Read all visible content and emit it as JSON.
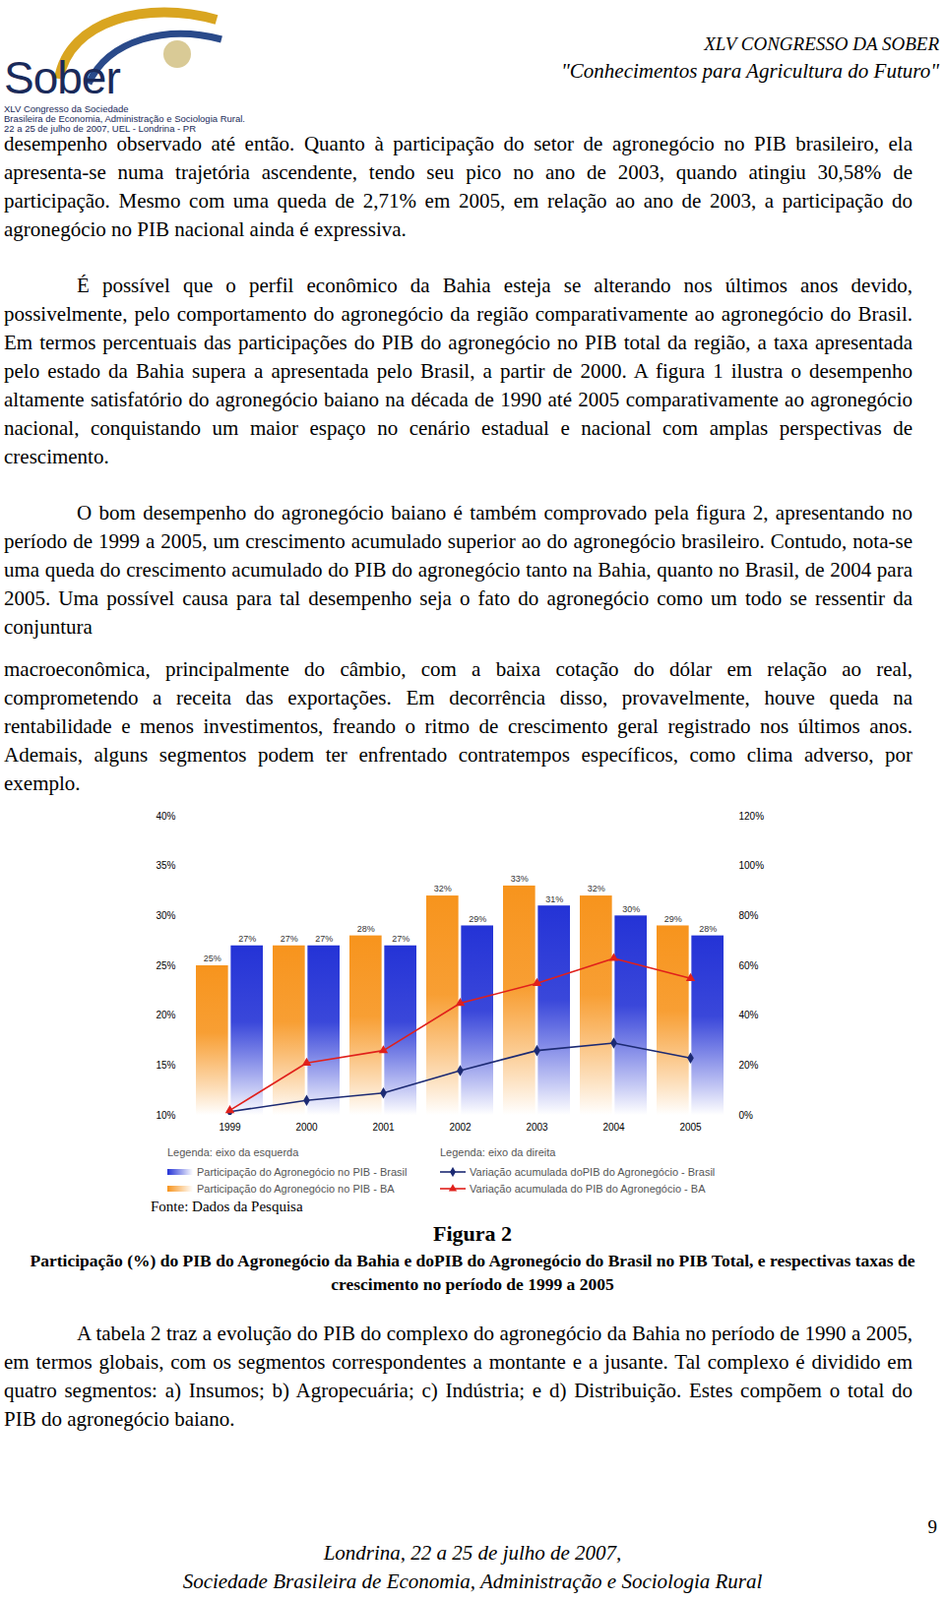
{
  "header": {
    "logo": "Sober",
    "logo_caption": [
      "XLV Congresso da Sociedade",
      "Brasileira de Economia, Administração e Sociologia Rural.",
      "22 a 25 de julho de 2007, UEL - Londrina - PR"
    ],
    "title": "XLV CONGRESSO DA SOBER",
    "subtitle": "\"Conhecimentos para Agricultura do Futuro\""
  },
  "body_before": [
    {
      "text": "desempenho observado até então. Quanto à participação do setor de agronegócio no PIB brasileiro, ela apresenta-se numa trajetória ascendente, tendo seu pico no ano de 2003, quando atingiu 30,58% de participação. Mesmo com uma queda de 2,71% em 2005, em relação ao ano de 2003, a participação do agronegócio no PIB nacional ainda é expressiva.",
      "indent": false
    },
    {
      "text": "É possível que o perfil econômico da Bahia esteja se alterando nos últimos anos devido, possivelmente, pelo comportamento do agronegócio da região comparativamente ao agronegócio do Brasil. Em termos percentuais das participações do PIB do agronegócio no PIB total da região, a taxa apresentada pelo estado da Bahia supera a apresentada pelo Brasil, a partir de 2000. A figura 1 ilustra o desempenho altamente satisfatório do agronegócio baiano na década de 1990 até 2005 comparativamente ao agronegócio nacional, conquistando um maior espaço no cenário estadual e nacional com amplas perspectivas de crescimento.",
      "indent": true
    },
    {
      "text": "O bom desempenho do agronegócio baiano é também comprovado pela figura 2, apresentando no período de 1999 a 2005, um crescimento acumulado superior ao do agronegócio brasileiro. Contudo, nota-se uma queda do crescimento acumulado do PIB do agronegócio tanto na Bahia, quanto no Brasil, de 2004 para 2005. Uma possível causa para tal desempenho seja o fato do agronegócio como um todo se ressentir da conjuntura",
      "indent": true
    },
    {
      "text": "macroeconômica, principalmente do câmbio, com a baixa cotação do dólar em relação ao real, comprometendo a receita das exportações. Em decorrência disso, provavelmente, houve queda na rentabilidade e menos investimentos, freando o ritmo de crescimento geral registrado nos últimos anos. Ademais, alguns segmentos podem ter enfrentado contratempos específicos, como clima adverso, por exemplo.",
      "indent": false
    }
  ],
  "chart_data": {
    "type": "bar",
    "categories": [
      "1999",
      "2000",
      "2001",
      "2002",
      "2003",
      "2004",
      "2005"
    ],
    "series": [
      {
        "name": "Participação do Agronegócio no PIB - Brasil",
        "type": "bar",
        "color": "#2433d6",
        "values": [
          27,
          27,
          27,
          29,
          31,
          30,
          28
        ],
        "value_labels": [
          "27%",
          "27%",
          "27%",
          "29%",
          "31%",
          "30%",
          "28%"
        ]
      },
      {
        "name": "Participação do Agronegócio no PIB - BA",
        "type": "bar",
        "color": "#f7941d",
        "values": [
          25,
          27,
          28,
          32,
          33,
          32,
          29
        ],
        "value_labels": [
          "25%",
          "27%",
          "28%",
          "32%",
          "33%",
          "32%",
          "29%"
        ]
      },
      {
        "name": "Variação acumulada doPIB do Agronegócio - Brasil",
        "type": "line",
        "axis": "y2",
        "color": "#1c2a73",
        "marker": "diamond",
        "values": [
          1.5,
          6,
          9,
          18,
          26,
          29,
          23
        ]
      },
      {
        "name": "Variação acumulada do PIB do Agronegócio - BA",
        "type": "line",
        "axis": "y2",
        "color": "#e0201b",
        "marker": "triangle",
        "values": [
          2,
          21,
          26,
          45,
          53,
          63,
          55
        ]
      }
    ],
    "ylim": [
      10,
      40
    ],
    "yticks": [
      {
        "value": 10,
        "label": "10%"
      },
      {
        "value": 15,
        "label": "15%"
      },
      {
        "value": 20,
        "label": "20%"
      },
      {
        "value": 25,
        "label": "25%"
      },
      {
        "value": 30,
        "label": "30%"
      },
      {
        "value": 35,
        "label": "35%"
      },
      {
        "value": 40,
        "label": "40%"
      }
    ],
    "y2lim": [
      0,
      120
    ],
    "y2ticks": [
      {
        "value": 0,
        "label": "0%"
      },
      {
        "value": 20,
        "label": "20%"
      },
      {
        "value": 40,
        "label": "40%"
      },
      {
        "value": 60,
        "label": "60%"
      },
      {
        "value": 80,
        "label": "80%"
      },
      {
        "value": 100,
        "label": "100%"
      },
      {
        "value": 120,
        "label": "120%"
      }
    ],
    "legend_titles": {
      "y": "Legenda: eixo da esquerda",
      "y2": "Legenda: eixo da direita"
    },
    "legend": "bottom",
    "grid": false,
    "data_labels": true
  },
  "figure": {
    "source": "Fonte: Dados da Pesquisa",
    "label": "Figura 2",
    "caption": "Participação (%) do PIB do Agronegócio da Bahia e doPIB do Agronegócio do Brasil no PIB Total, e respectivas taxas de crescimento no período de 1999 a 2005"
  },
  "body_after": [
    {
      "text": "A tabela 2 traz a evolução do PIB do complexo do agronegócio da Bahia no período de 1990 a 2005, em termos globais, com os segmentos correspondentes a montante e a jusante. Tal complexo é dividido em quatro segmentos: a) Insumos; b) Agropecuária; c) Indústria; e d) Distribuição. Estes compõem o total do PIB do agronegócio baiano.",
      "indent": true
    }
  ],
  "footer": {
    "lines": [
      "Londrina, 22 a 25 de julho de 2007,",
      "Sociedade Brasileira de Economia, Administração e Sociologia Rural"
    ],
    "page": 9
  }
}
